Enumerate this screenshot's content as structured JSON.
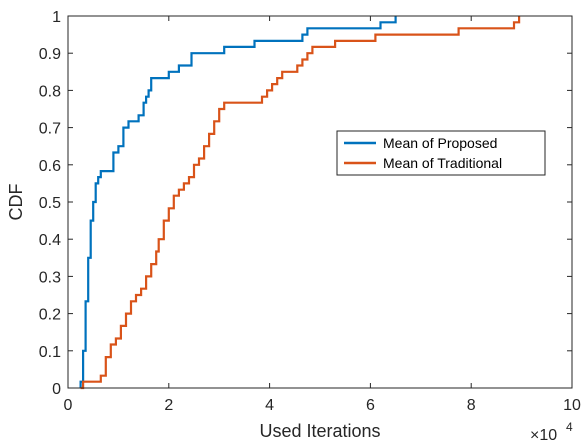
{
  "chart_data": {
    "type": "line",
    "step": true,
    "xlabel": "Used Iterations",
    "ylabel": "CDF",
    "x_multiplier_label": "×10",
    "x_multiplier_exponent": "4",
    "xlim": [
      0,
      10
    ],
    "ylim": [
      0,
      1
    ],
    "x_ticks": [
      "0",
      "2",
      "4",
      "6",
      "8",
      "10"
    ],
    "y_ticks": [
      "0",
      "0.1",
      "0.2",
      "0.3",
      "0.4",
      "0.5",
      "0.6",
      "0.7",
      "0.8",
      "0.9",
      "1"
    ],
    "grid": false,
    "box": true,
    "legend_position": "right-middle",
    "series": [
      {
        "name": "Mean of Proposed",
        "color": "#0072BD",
        "x": [
          0.25,
          0.25,
          0.3,
          0.35,
          0.4,
          0.45,
          0.5,
          0.55,
          0.6,
          0.65,
          0.7,
          0.9,
          1.0,
          1.1,
          1.2,
          1.4,
          1.5,
          1.55,
          1.6,
          1.65,
          1.75,
          2.0,
          2.2,
          2.45,
          3.1,
          3.7,
          4.65,
          4.75,
          6.2,
          6.5
        ],
        "y": [
          0.0,
          0.017,
          0.1,
          0.233,
          0.35,
          0.45,
          0.5,
          0.55,
          0.567,
          0.583,
          0.583,
          0.633,
          0.65,
          0.7,
          0.717,
          0.733,
          0.767,
          0.783,
          0.8,
          0.833,
          0.833,
          0.85,
          0.867,
          0.9,
          0.917,
          0.933,
          0.95,
          0.967,
          0.983,
          1.0
        ]
      },
      {
        "name": "Mean of Traditional",
        "color": "#D95319",
        "x": [
          0.25,
          0.3,
          0.65,
          0.75,
          0.85,
          0.95,
          1.05,
          1.15,
          1.25,
          1.35,
          1.45,
          1.55,
          1.65,
          1.75,
          1.8,
          1.9,
          2.0,
          2.1,
          2.2,
          2.3,
          2.4,
          2.5,
          2.6,
          2.7,
          2.8,
          2.9,
          3.0,
          3.1,
          3.85,
          3.95,
          4.05,
          4.15,
          4.25,
          4.55,
          4.65,
          4.75,
          4.85,
          4.95,
          5.3,
          5.4,
          6.1,
          6.6,
          7.75,
          8.85,
          8.95
        ],
        "y": [
          0.0,
          0.017,
          0.033,
          0.083,
          0.117,
          0.133,
          0.167,
          0.2,
          0.233,
          0.25,
          0.267,
          0.3,
          0.333,
          0.367,
          0.4,
          0.45,
          0.483,
          0.517,
          0.533,
          0.55,
          0.567,
          0.6,
          0.617,
          0.65,
          0.683,
          0.717,
          0.75,
          0.767,
          0.783,
          0.8,
          0.817,
          0.833,
          0.85,
          0.867,
          0.883,
          0.9,
          0.917,
          0.917,
          0.933,
          0.933,
          0.95,
          0.95,
          0.967,
          0.983,
          1.0
        ]
      }
    ]
  }
}
